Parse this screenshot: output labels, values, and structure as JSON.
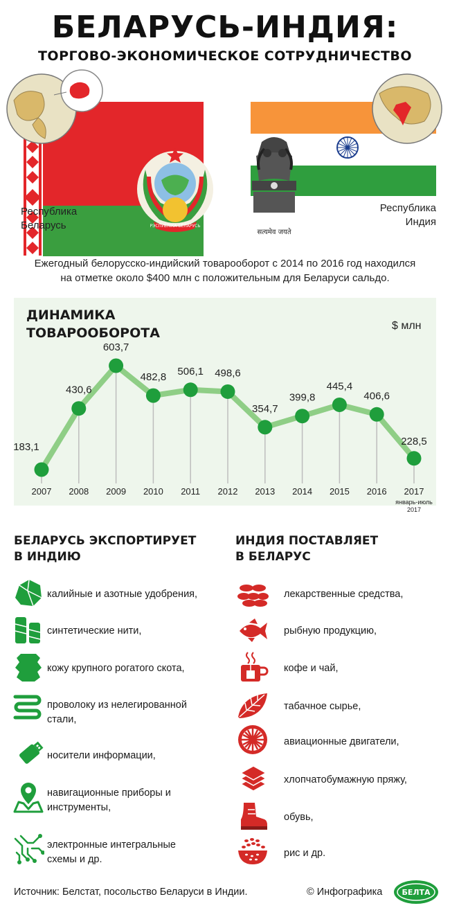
{
  "header": {
    "title": "БЕЛАРУСЬ-ИНДИЯ:",
    "subtitle": "ТОРГОВО-ЭКОНОМИЧЕСКОЕ СОТРУДНИЧЕСТВО"
  },
  "countries": {
    "belarus": {
      "label_line1": "Республика",
      "label_line2": "Беларусь",
      "emblem_text": "РЭСПУБЛІКА БЕЛАРУСЬ"
    },
    "india": {
      "label_line1": "Республика",
      "label_line2": "Индия",
      "emblem_motto": "सत्यमेव जयते"
    }
  },
  "intro": {
    "line1": "Ежегодный белорусско-индийский товарооборот с 2014 по 2016 год находился",
    "line2": "на отметке около $400 млн с положительным для Беларуси сальдо."
  },
  "chart_data": {
    "type": "line",
    "title_line1": "ДИНАМИКА",
    "title_line2": "ТОВАРООБОРОТА",
    "unit": "$ млн",
    "categories": [
      "2007",
      "2008",
      "2009",
      "2010",
      "2011",
      "2012",
      "2013",
      "2014",
      "2015",
      "2016",
      "2017"
    ],
    "values": [
      183.1,
      430.6,
      603.7,
      482.8,
      506.1,
      498.6,
      354.7,
      399.8,
      445.4,
      406.6,
      228.5
    ],
    "value_labels": [
      "183,1",
      "430,6",
      "603,7",
      "482,8",
      "506,1",
      "498,6",
      "354,7",
      "399,8",
      "445,4",
      "406,6",
      "228,5"
    ],
    "last_note_line1": "январь-июль",
    "last_note_line2": "2017",
    "colors": {
      "line": "#8fce86",
      "point": "#1f9e3c",
      "drop": "#bdbdbd",
      "background": "#eef6ec"
    }
  },
  "exports": {
    "title_line1": "БЕЛАРУСЬ ЭКСПОРТИРУЕТ",
    "title_line2": "В ИНДИЮ",
    "color": "#1f9e3c",
    "items": [
      {
        "icon": "fertilizer-rock-icon",
        "line1": "калийные и азотные удобрения,",
        "line2": ""
      },
      {
        "icon": "thread-spools-icon",
        "line1": "синтетические нити,",
        "line2": ""
      },
      {
        "icon": "leather-hide-icon",
        "line1": "кожу крупного рогатого скота,",
        "line2": ""
      },
      {
        "icon": "wire-coil-icon",
        "line1": "проволоку из нелегированной",
        "line2": "стали,"
      },
      {
        "icon": "usb-drive-icon",
        "line1": "носители информации,",
        "line2": ""
      },
      {
        "icon": "map-pin-icon",
        "line1": "навигационные приборы и",
        "line2": "инструменты,"
      },
      {
        "icon": "circuit-icon",
        "line1": "электронные интегральные",
        "line2": "схемы и др."
      }
    ]
  },
  "imports": {
    "title_line1": "ИНДИЯ ПОСТАВЛЯЕТ",
    "title_line2": "В БЕЛАРУС",
    "color": "#d42a27",
    "items": [
      {
        "icon": "pills-icon",
        "text": "лекарственные средства,"
      },
      {
        "icon": "fish-icon",
        "text": "рыбную продукцию,"
      },
      {
        "icon": "tea-cup-icon",
        "text": "кофе и чай,"
      },
      {
        "icon": "tobacco-leaf-icon",
        "text": "табачное сырье,"
      },
      {
        "icon": "jet-engine-icon",
        "text": "авиационные двигатели,"
      },
      {
        "icon": "cotton-fabric-icon",
        "text": "хлопчатобумажную пряжу,"
      },
      {
        "icon": "boot-icon",
        "text": "обувь,"
      },
      {
        "icon": "rice-bowl-icon",
        "text": "рис и др."
      }
    ]
  },
  "footer": {
    "source": "Источник: Белстат, посольство Беларуси в Индии.",
    "credit": "© Инфографика",
    "logo_text": "БЕЛТА"
  }
}
